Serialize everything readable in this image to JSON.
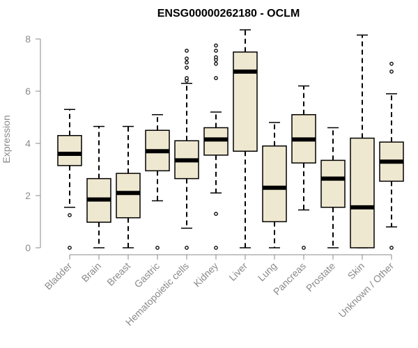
{
  "chart_data": {
    "type": "boxplot",
    "title": "ENSG00000262180 - OCLM",
    "ylabel": "Expression",
    "xlabel": "",
    "ylim": [
      0,
      8.4
    ],
    "yticks": [
      0,
      2,
      4,
      6,
      8
    ],
    "categories": [
      "Bladder",
      "Brain",
      "Breast",
      "Gastric",
      "Hematopoietic cells",
      "Kidney",
      "Liver",
      "Lung",
      "Pancreas",
      "Prostate",
      "Skin",
      "Unknown / Other"
    ],
    "boxes": [
      {
        "whisker_low": 1.55,
        "q1": 3.15,
        "median": 3.6,
        "q3": 4.3,
        "whisker_high": 5.3,
        "outliers": [
          0,
          1.25
        ]
      },
      {
        "whisker_low": 0,
        "q1": 0.98,
        "median": 1.85,
        "q3": 2.65,
        "whisker_high": 4.65,
        "outliers": []
      },
      {
        "whisker_low": 0,
        "q1": 1.15,
        "median": 2.1,
        "q3": 2.85,
        "whisker_high": 4.65,
        "outliers": []
      },
      {
        "whisker_low": 1.8,
        "q1": 2.95,
        "median": 3.7,
        "q3": 4.5,
        "whisker_high": 5.1,
        "outliers": [
          0
        ]
      },
      {
        "whisker_low": 0.75,
        "q1": 2.65,
        "median": 3.35,
        "q3": 4.1,
        "whisker_high": 6.3,
        "outliers": [
          0,
          6.4,
          6.5,
          6.9,
          7.1,
          7.25,
          7.55
        ]
      },
      {
        "whisker_low": 2.1,
        "q1": 3.55,
        "median": 4.15,
        "q3": 4.6,
        "whisker_high": 5.2,
        "outliers": [
          0,
          1.3,
          6.5,
          7.05,
          7.2,
          7.3,
          7.55,
          7.75
        ]
      },
      {
        "whisker_low": 0,
        "q1": 3.7,
        "median": 6.75,
        "q3": 7.5,
        "whisker_high": 8.35,
        "outliers": []
      },
      {
        "whisker_low": 0,
        "q1": 1.0,
        "median": 2.3,
        "q3": 3.9,
        "whisker_high": 4.8,
        "outliers": []
      },
      {
        "whisker_low": 1.45,
        "q1": 3.25,
        "median": 4.15,
        "q3": 5.1,
        "whisker_high": 6.2,
        "outliers": [
          0
        ]
      },
      {
        "whisker_low": 0,
        "q1": 1.55,
        "median": 2.65,
        "q3": 3.35,
        "whisker_high": 4.6,
        "outliers": []
      },
      {
        "whisker_low": 0,
        "q1": 0,
        "median": 1.55,
        "q3": 4.2,
        "whisker_high": 8.15,
        "outliers": []
      },
      {
        "whisker_low": 0.8,
        "q1": 2.55,
        "median": 3.3,
        "q3": 4.05,
        "whisker_high": 5.9,
        "outliers": [
          0,
          6.75,
          7.05
        ]
      }
    ],
    "colors": {
      "box_fill": "#efe8d0",
      "box_stroke": "#000000",
      "median": "#000000",
      "axis": "#8a8a8a",
      "tick_label": "#8a8a8a",
      "title": "#000000"
    },
    "grid": false,
    "legend": "none"
  }
}
